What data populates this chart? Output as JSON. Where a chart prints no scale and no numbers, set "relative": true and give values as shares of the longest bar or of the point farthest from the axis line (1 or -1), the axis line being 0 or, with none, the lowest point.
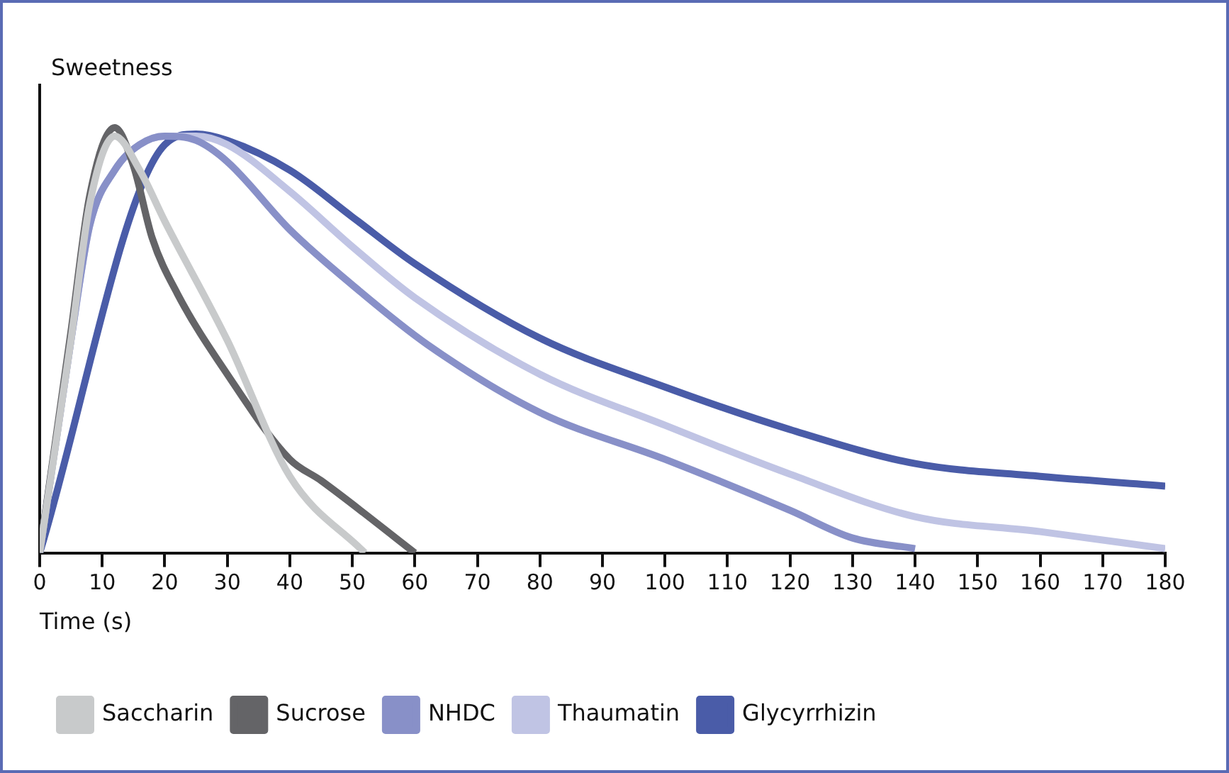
{
  "chart_data": {
    "type": "line",
    "ylabel": "Sweetness",
    "xlabel": "Time (s)",
    "relative": true,
    "xlim": [
      0,
      180
    ],
    "xticks": [
      0,
      10,
      20,
      30,
      40,
      50,
      60,
      70,
      80,
      90,
      100,
      110,
      120,
      130,
      140,
      150,
      160,
      170,
      180
    ],
    "grid": false,
    "legend": "bottom left",
    "marker": "none",
    "line_style": "solid",
    "series": [
      {
        "name": "Saccharin",
        "color": "#c8cacb",
        "x": [
          0,
          5,
          8,
          12,
          16,
          20,
          30,
          40,
          52
        ],
        "values": [
          0,
          0.5,
          0.82,
          0.98,
          0.9,
          0.78,
          0.5,
          0.18,
          0
        ]
      },
      {
        "name": "Sucrose",
        "color": "#646467",
        "x": [
          0,
          5,
          8,
          12,
          15,
          18,
          22,
          30,
          40,
          45,
          60
        ],
        "values": [
          0,
          0.52,
          0.84,
          1,
          0.91,
          0.74,
          0.61,
          0.42,
          0.22,
          0.17,
          0
        ]
      },
      {
        "name": "NHDC",
        "color": "#8890c8",
        "x": [
          0,
          5,
          8,
          12,
          16,
          20,
          25,
          30,
          40,
          50,
          62,
          80,
          100,
          120,
          130,
          140
        ],
        "values": [
          0,
          0.5,
          0.77,
          0.9,
          0.96,
          0.98,
          0.97,
          0.92,
          0.76,
          0.63,
          0.49,
          0.33,
          0.22,
          0.1,
          0.035,
          0.01
        ]
      },
      {
        "name": "Thaumatin",
        "color": "#c0c4e4",
        "x": [
          0,
          5,
          8,
          12,
          16,
          20,
          25,
          30,
          40,
          50,
          60,
          80,
          100,
          120,
          140,
          160,
          180
        ],
        "values": [
          0,
          0.5,
          0.77,
          0.9,
          0.96,
          0.98,
          0.98,
          0.96,
          0.85,
          0.72,
          0.6,
          0.42,
          0.3,
          0.185,
          0.085,
          0.05,
          0.01
        ]
      },
      {
        "name": "Glycyrrhizin",
        "color": "#4a5ca8",
        "x": [
          0,
          20,
          25,
          30,
          40,
          50,
          60,
          80,
          100,
          120,
          140,
          160,
          180
        ],
        "values": [
          0,
          0.96,
          0.985,
          0.97,
          0.9,
          0.79,
          0.68,
          0.505,
          0.39,
          0.29,
          0.21,
          0.18,
          0.157
        ]
      }
    ]
  }
}
